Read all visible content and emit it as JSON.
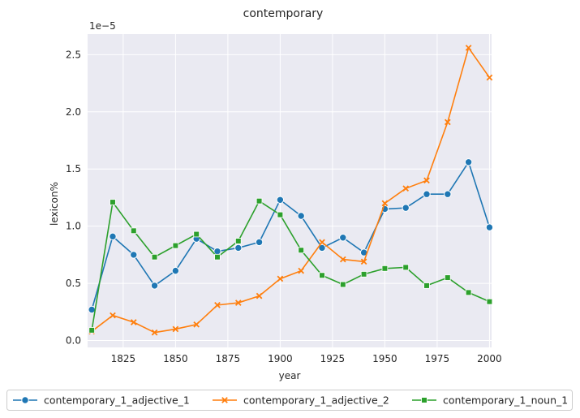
{
  "chart_data": {
    "type": "line",
    "title": "contemporary",
    "xlabel": "year",
    "ylabel": "lexicon%",
    "y_scale_label": "1e−5",
    "y_multiplier": 1e-05,
    "xlim": [
      1808,
      2001
    ],
    "ylim": [
      -0.06,
      2.68
    ],
    "x_ticks": [
      1825,
      1850,
      1875,
      1900,
      1925,
      1950,
      1975,
      2000
    ],
    "y_ticks": [
      0.0,
      0.5,
      1.0,
      1.5,
      2.0,
      2.5
    ],
    "y_tick_labels": [
      "0.0",
      "0.5",
      "1.0",
      "1.5",
      "2.0",
      "2.5"
    ],
    "grid": true,
    "background": "#eaeaf2",
    "legend_position": "bottom-center",
    "x": [
      1810,
      1820,
      1830,
      1840,
      1850,
      1860,
      1870,
      1880,
      1890,
      1900,
      1910,
      1920,
      1930,
      1940,
      1950,
      1960,
      1970,
      1980,
      1990,
      2000
    ],
    "series": [
      {
        "name": "contemporary_1_adjective_1",
        "color": "#1f77b4",
        "marker": "circle",
        "values": [
          0.27,
          0.91,
          0.75,
          0.48,
          0.61,
          0.89,
          0.78,
          0.81,
          0.86,
          1.23,
          1.09,
          0.81,
          0.9,
          0.77,
          1.15,
          1.16,
          1.28,
          1.28,
          1.56,
          0.99
        ]
      },
      {
        "name": "contemporary_1_adjective_2",
        "color": "#ff7f0e",
        "marker": "x",
        "values": [
          0.08,
          0.22,
          0.16,
          0.07,
          0.1,
          0.14,
          0.31,
          0.33,
          0.39,
          0.54,
          0.61,
          0.86,
          0.71,
          0.69,
          1.2,
          1.33,
          1.4,
          1.91,
          2.56,
          2.3
        ]
      },
      {
        "name": "contemporary_1_noun_1",
        "color": "#2ca02c",
        "marker": "square",
        "values": [
          0.09,
          1.21,
          0.96,
          0.73,
          0.83,
          0.93,
          0.73,
          0.87,
          1.22,
          1.1,
          0.79,
          0.57,
          0.49,
          0.58,
          0.63,
          0.64,
          0.48,
          0.55,
          0.42,
          0.34
        ]
      }
    ]
  }
}
